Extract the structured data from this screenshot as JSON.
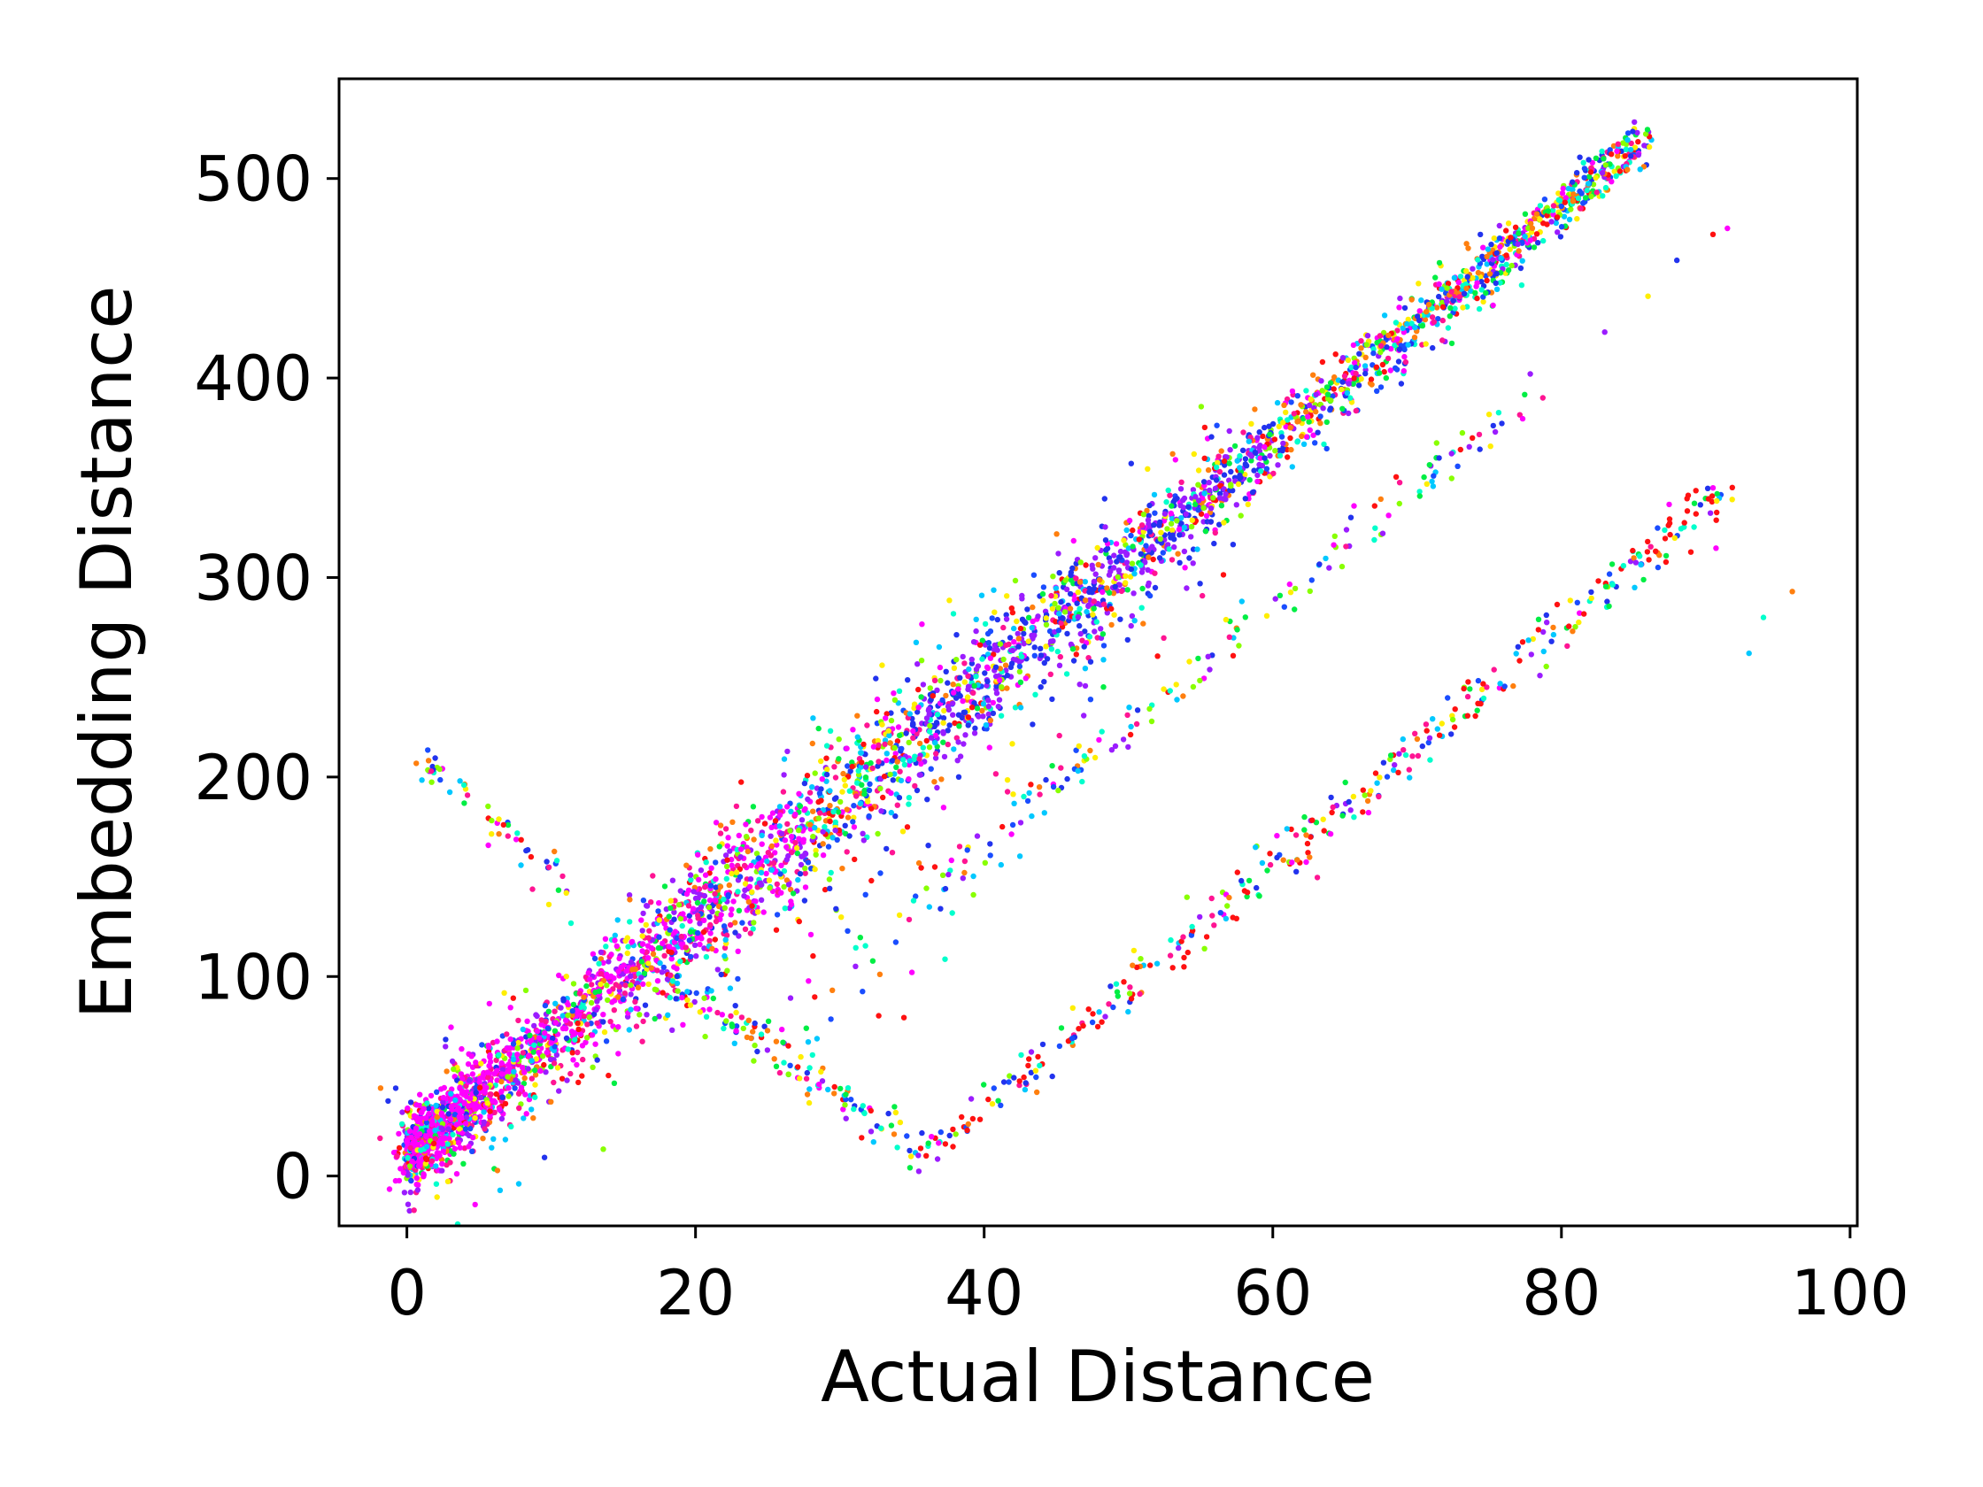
{
  "chart_data": {
    "type": "scatter",
    "title": "",
    "xlabel": "Actual Distance",
    "ylabel": "Embedding Distance",
    "xlim": [
      -4.7,
      100.5
    ],
    "ylim": [
      -25,
      550
    ],
    "xticks": [
      0,
      20,
      40,
      60,
      80,
      100
    ],
    "yticks": [
      0,
      100,
      200,
      300,
      400,
      500
    ],
    "xtick_labels": [
      "0",
      "20",
      "40",
      "60",
      "80",
      "100"
    ],
    "ytick_labels": [
      "0",
      "100",
      "200",
      "300",
      "400",
      "500"
    ],
    "grid": false,
    "legend": "none",
    "point_colors": [
      "#ff1111",
      "#ff7f0e",
      "#ffee00",
      "#88ff00",
      "#00ee44",
      "#00ffcc",
      "#00c8ff",
      "#1a4dff",
      "#2233ee",
      "#9b1cff",
      "#ff00ff",
      "#ff1493"
    ],
    "clusters": [
      {
        "name": "main diagonal band",
        "x": [
          0,
          86
        ],
        "y": [
          10,
          522
        ],
        "spread": 7
      },
      {
        "name": "lower-left dense core",
        "x": [
          0,
          30
        ],
        "y": [
          10,
          180
        ],
        "spread": 10
      },
      {
        "name": "upper-left descending branch",
        "x": [
          1,
          12
        ],
        "y": [
          210,
          140
        ],
        "spread": 6
      },
      {
        "name": "middle parallel band",
        "x": [
          37,
          78
        ],
        "y": [
          150,
          393
        ],
        "spread": 9
      },
      {
        "name": "right parallel band",
        "x": [
          38,
          91
        ],
        "y": [
          12,
          342
        ],
        "spread": 9
      },
      {
        "name": "V-shaped descending segment",
        "x": [
          18,
          36
        ],
        "y": [
          100,
          8
        ],
        "spread": 8
      },
      {
        "name": "outer outliers",
        "points": [
          [
            91.5,
            475
          ],
          [
            90.5,
            472
          ],
          [
            96,
            293
          ],
          [
            94,
            280
          ],
          [
            93,
            262
          ],
          [
            88,
            459
          ],
          [
            86,
            441
          ],
          [
            83,
            423
          ]
        ]
      }
    ],
    "point_count": 5200
  }
}
